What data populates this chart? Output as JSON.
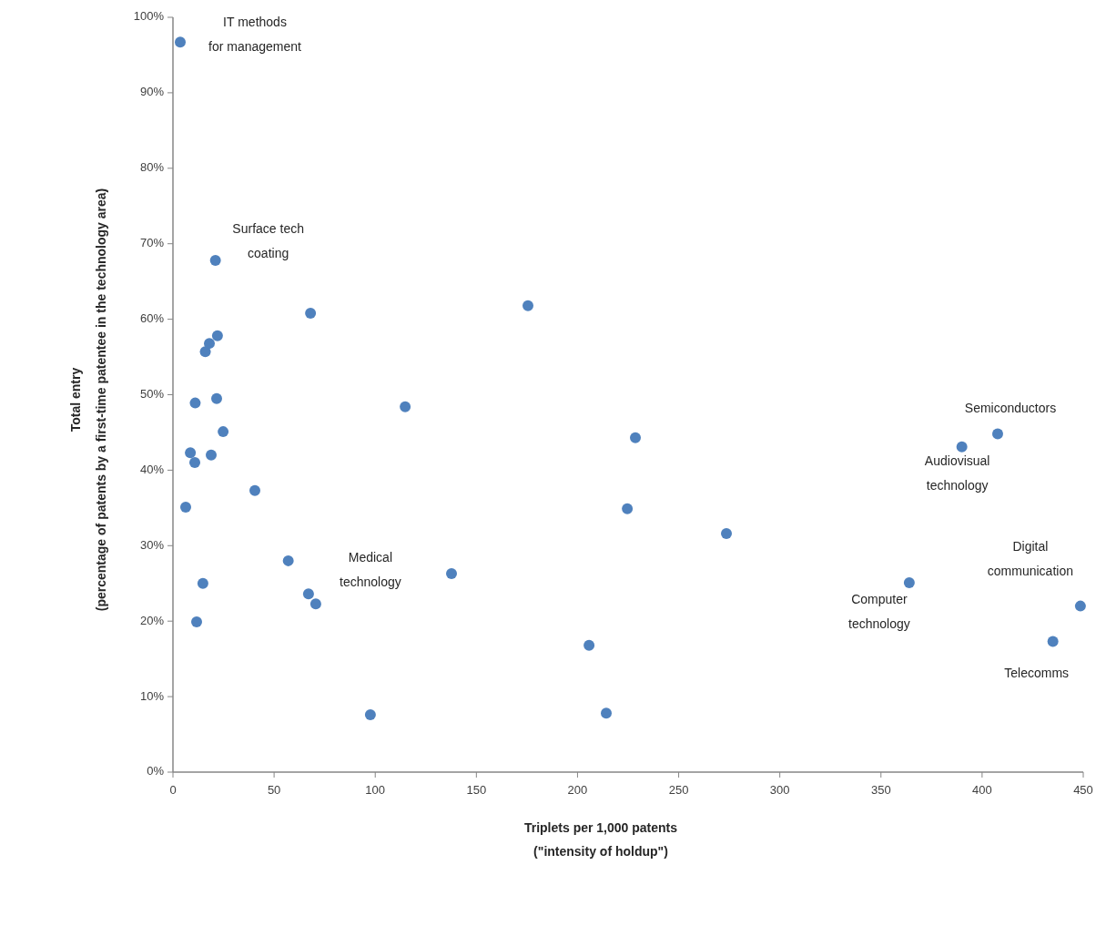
{
  "chart_data": {
    "type": "scatter",
    "xlabel": "Triplets per 1,000 patents\n(\"intensity of holdup\")",
    "ylabel": "Total entry\n(percentage of patents by a first-time patentee in the technology area)",
    "x": [
      3.6,
      21,
      68,
      16,
      18,
      22,
      11,
      21.6,
      24.8,
      8.6,
      10.8,
      18.9,
      40.5,
      6.3,
      57,
      14.8,
      67,
      70.6,
      11.7,
      97.6,
      114.8,
      137.7,
      175.5,
      228.6,
      224.6,
      273.6,
      205.7,
      214.2,
      407.7,
      390,
      364,
      448.6,
      435
    ],
    "series": [
      {
        "color": "#4f81bd",
        "values": [
          96.7,
          67.8,
          60.8,
          55.7,
          56.8,
          57.8,
          48.9,
          49.5,
          45.1,
          42.3,
          41.0,
          42.0,
          37.3,
          35.1,
          28.0,
          25.0,
          23.6,
          22.3,
          19.9,
          7.6,
          48.4,
          26.3,
          61.8,
          44.3,
          34.9,
          31.6,
          16.8,
          7.8,
          44.8,
          43.1,
          25.1,
          22.0,
          17.3
        ]
      }
    ],
    "xlim": [
      0,
      450
    ],
    "xticks": [
      0,
      50,
      100,
      150,
      200,
      250,
      300,
      350,
      400,
      450
    ],
    "ylim": [
      0,
      100
    ],
    "yticks": [
      {
        "value": 0,
        "label": "0%"
      },
      {
        "value": 10,
        "label": "10%"
      },
      {
        "value": 20,
        "label": "20%"
      },
      {
        "value": 30,
        "label": "30%"
      },
      {
        "value": 40,
        "label": "40%"
      },
      {
        "value": 50,
        "label": "50%"
      },
      {
        "value": 60,
        "label": "60%"
      },
      {
        "value": 70,
        "label": "70%"
      },
      {
        "value": 80,
        "label": "80%"
      },
      {
        "value": 90,
        "label": "90%"
      },
      {
        "value": 100,
        "label": "100%"
      }
    ],
    "grid": false,
    "marker": "circle",
    "annotations": [
      {
        "text": "IT methods\nfor management",
        "x": 3.6,
        "y": 96.7
      },
      {
        "text": "Surface tech\ncoating",
        "x": 21,
        "y": 67.8
      },
      {
        "text": "Medical\ntechnology",
        "x": 70.6,
        "y": 22.3
      },
      {
        "text": "Semiconductors",
        "x": 407.7,
        "y": 44.8
      },
      {
        "text": "Audiovisual\ntechnology",
        "x": 390,
        "y": 43.1
      },
      {
        "text": "Digital\ncommunication",
        "x": 448.6,
        "y": 22.0
      },
      {
        "text": "Computer\ntechnology",
        "x": 364,
        "y": 25.1
      },
      {
        "text": "Telecomms",
        "x": 435,
        "y": 17.3
      }
    ]
  }
}
